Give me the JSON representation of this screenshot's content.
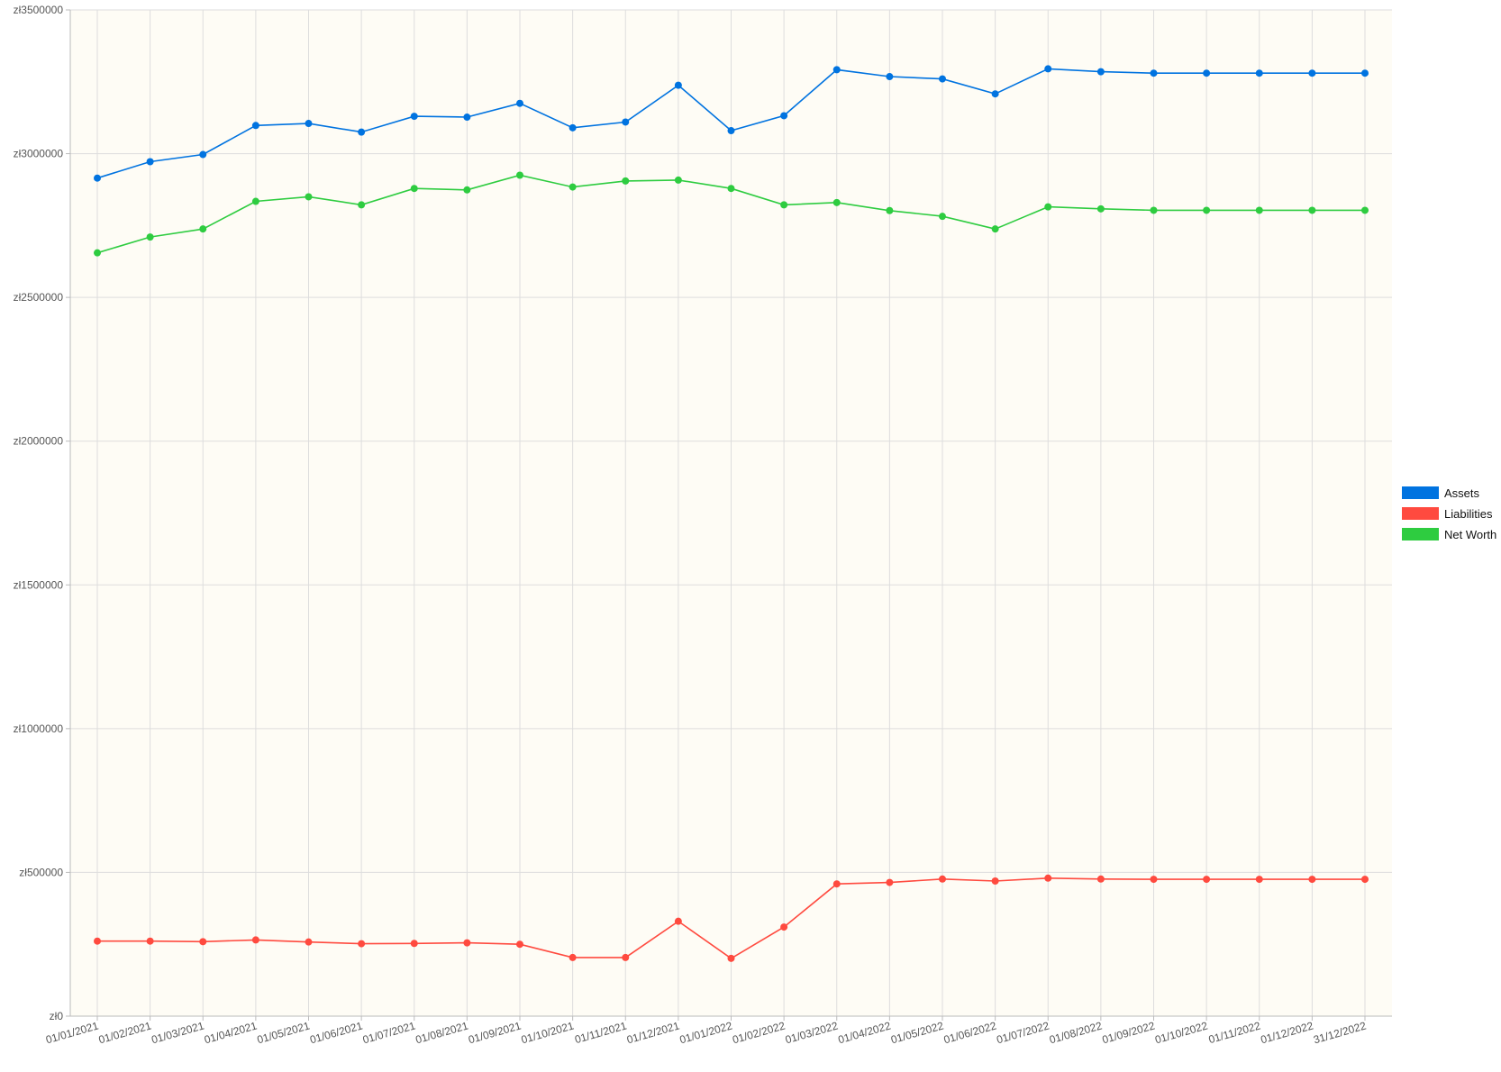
{
  "chart_data": {
    "type": "line",
    "x": [
      "01/01/2021",
      "01/02/2021",
      "01/03/2021",
      "01/04/2021",
      "01/05/2021",
      "01/06/2021",
      "01/07/2021",
      "01/08/2021",
      "01/09/2021",
      "01/10/2021",
      "01/11/2021",
      "01/12/2021",
      "01/01/2022",
      "01/02/2022",
      "01/03/2022",
      "01/04/2022",
      "01/05/2022",
      "01/06/2022",
      "01/07/2022",
      "01/08/2022",
      "01/09/2022",
      "01/10/2022",
      "01/11/2022",
      "01/12/2022",
      "31/12/2022"
    ],
    "series": [
      {
        "name": "Assets",
        "color": "#0073e0",
        "values": [
          2915000,
          2972000,
          2997000,
          3098000,
          3105000,
          3075000,
          3130000,
          3127000,
          3175000,
          3090000,
          3110000,
          3238000,
          3080000,
          3132000,
          3292000,
          3268000,
          3260000,
          3208000,
          3295000,
          3285000,
          3280000,
          3280000,
          3280000,
          3280000,
          3280000
        ]
      },
      {
        "name": "Liabilities",
        "color": "#ff4a3f",
        "values": [
          261000,
          261000,
          259000,
          265000,
          258000,
          252000,
          253000,
          255000,
          250000,
          204000,
          204000,
          330000,
          201000,
          310000,
          460000,
          465000,
          477000,
          470000,
          480000,
          477000,
          476000,
          476000,
          476000,
          476000,
          476000
        ]
      },
      {
        "name": "Net Worth",
        "color": "#2ecc40",
        "values": [
          2655000,
          2710000,
          2738000,
          2834000,
          2850000,
          2822000,
          2879000,
          2874000,
          2925000,
          2884000,
          2905000,
          2908000,
          2879000,
          2822000,
          2830000,
          2802000,
          2782000,
          2738000,
          2815000,
          2808000,
          2803000,
          2803000,
          2803000,
          2803000,
          2803000
        ]
      }
    ],
    "y_ticks": [
      "zł0",
      "zł500000",
      "zł1000000",
      "zł1500000",
      "zł2000000",
      "zł2500000",
      "zł3000000",
      "zł3500000"
    ],
    "ylim": [
      0,
      3500000
    ],
    "title": "",
    "xlabel": "",
    "ylabel": "",
    "grid": true,
    "legend_position": "right",
    "plot_background": "#fefcf5"
  }
}
